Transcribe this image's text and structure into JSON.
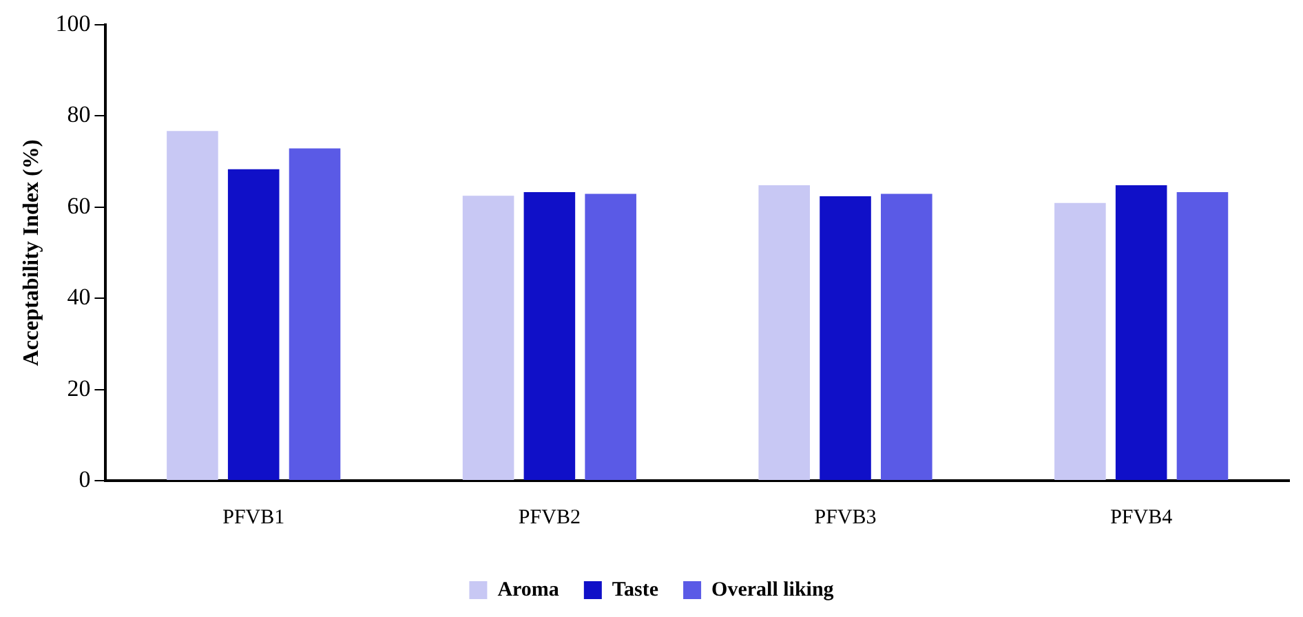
{
  "chart_data": {
    "type": "bar",
    "ylabel": "Acceptability Index (%)",
    "categories": [
      "PFVB1",
      "PFVB2",
      "PFVB3",
      "PFVB4"
    ],
    "series": [
      {
        "name": "Aroma",
        "color": "#c8c8f4",
        "values": [
          76.7,
          62.5,
          64.8,
          60.9
        ]
      },
      {
        "name": "Taste",
        "color": "#1010c8",
        "values": [
          68.3,
          63.3,
          62.4,
          64.8
        ]
      },
      {
        "name": "Overall liking",
        "color": "#5a5ae6",
        "values": [
          72.9,
          62.9,
          62.9,
          63.3
        ]
      }
    ],
    "ylim": [
      0,
      100
    ],
    "yticks": [
      0,
      20,
      40,
      60,
      80,
      100
    ],
    "grid": false,
    "legend": "bottom"
  }
}
